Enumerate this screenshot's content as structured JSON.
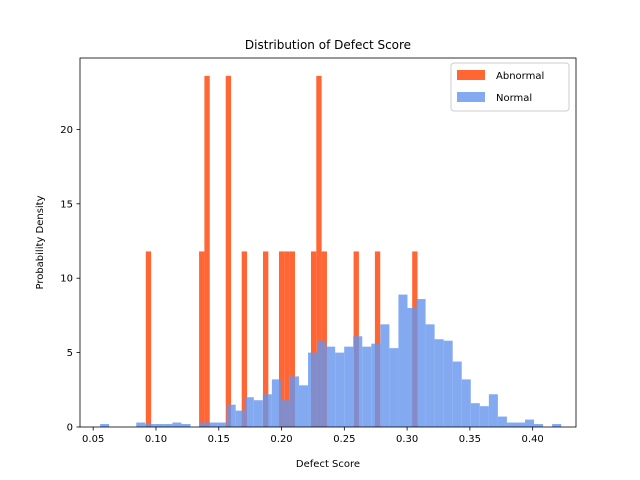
{
  "chart_data": {
    "type": "histogram",
    "title": "Distribution of Defect Score",
    "xlabel": "Defect Score",
    "ylabel": "Probability Density",
    "xlim": [
      0.0395,
      0.4345
    ],
    "ylim": [
      0,
      24.8
    ],
    "xticks": [
      {
        "value": 0.05,
        "label": "0.05"
      },
      {
        "value": 0.1,
        "label": "0.10"
      },
      {
        "value": 0.15,
        "label": "0.15"
      },
      {
        "value": 0.2,
        "label": "0.20"
      },
      {
        "value": 0.25,
        "label": "0.25"
      },
      {
        "value": 0.3,
        "label": "0.30"
      },
      {
        "value": 0.35,
        "label": "0.35"
      },
      {
        "value": 0.4,
        "label": "0.40"
      }
    ],
    "yticks": [
      {
        "value": 0,
        "label": "0"
      },
      {
        "value": 5,
        "label": "5"
      },
      {
        "value": 10,
        "label": "10"
      },
      {
        "value": 15,
        "label": "15"
      },
      {
        "value": 20,
        "label": "20"
      }
    ],
    "legend": {
      "placement": "top-right"
    },
    "grid": false,
    "series": [
      {
        "name": "Abnormal",
        "color": "#ff6633",
        "opacity": 1.0,
        "bin_start": 0.0919,
        "bin_width": 0.004243,
        "values": [
          11.8,
          0,
          0,
          0,
          0,
          0,
          0,
          0,
          0,
          0,
          11.8,
          23.6,
          0,
          0,
          0,
          23.6,
          0,
          0,
          11.8,
          0,
          0,
          0,
          11.8,
          0,
          0,
          11.8,
          11.8,
          11.8,
          0,
          0,
          0,
          11.8,
          23.6,
          11.8,
          0,
          0,
          0,
          0,
          0,
          11.8,
          0,
          0,
          0,
          11.8,
          0,
          0,
          0,
          0,
          0,
          0,
          11.8
        ]
      },
      {
        "name": "Normal",
        "color": "#6495ed",
        "opacity": 0.8,
        "bin_start": 0.0555,
        "bin_width": 0.0072,
        "values": [
          0.2,
          0,
          0,
          0,
          0.3,
          0.2,
          0.2,
          0.2,
          0.3,
          0.2,
          0,
          0.3,
          0.3,
          0.3,
          1.5,
          1.1,
          2.0,
          1.8,
          2.2,
          3.2,
          1.8,
          3.4,
          2.8,
          5.0,
          5.8,
          5.4,
          5.0,
          5.4,
          6.1,
          5.4,
          5.6,
          6.9,
          5.3,
          8.9,
          8.0,
          8.6,
          6.9,
          5.9,
          5.8,
          4.4,
          3.2,
          1.6,
          1.4,
          2.2,
          0.7,
          0.3,
          0.3,
          0.5,
          0.2,
          0,
          0.2
        ]
      }
    ]
  }
}
